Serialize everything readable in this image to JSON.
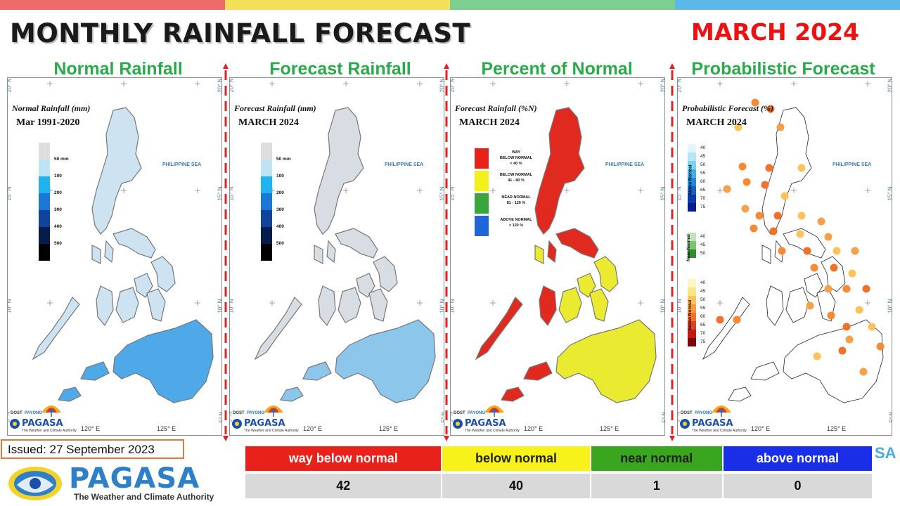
{
  "header": {
    "title": "MONTHLY RAINFALL FORECAST",
    "month": "MARCH 2024",
    "stripe_colors": [
      "#ef6b6b",
      "#f5e05a",
      "#7ccf8e",
      "#5bb8e8"
    ]
  },
  "panels": [
    {
      "title": "Normal Rainfall",
      "subtitle": "Normal Rainfall (mm)",
      "period": "Mar 1991-2020",
      "sea_label": "PHILIPPINE SEA",
      "map_fill": "#cde3f2",
      "legend": [
        {
          "label": "50 mm",
          "color": "#dedede"
        },
        {
          "label": "100",
          "color": "#bde3f5"
        },
        {
          "label": "200",
          "color": "#1fb4ef"
        },
        {
          "label": "300",
          "color": "#1b78d6"
        },
        {
          "label": "400",
          "color": "#10449c"
        },
        {
          "label": "500",
          "color": "#061c4f"
        },
        {
          "label": "",
          "color": "#000000"
        }
      ]
    },
    {
      "title": "Forecast Rainfall",
      "subtitle": "Forecast Rainfall (mm)",
      "period": "MARCH 2024",
      "sea_label": "PHILIPPINE SEA",
      "map_fill": "#d7dde2",
      "legend": [
        {
          "label": "50 mm",
          "color": "#dedede"
        },
        {
          "label": "100",
          "color": "#bde3f5"
        },
        {
          "label": "200",
          "color": "#1fb4ef"
        },
        {
          "label": "300",
          "color": "#1b78d6"
        },
        {
          "label": "400",
          "color": "#10449c"
        },
        {
          "label": "500",
          "color": "#061c4f"
        },
        {
          "label": "",
          "color": "#000000"
        }
      ]
    },
    {
      "title": "Percent of Normal",
      "subtitle": "Forecast Rainfall (%N)",
      "period": "MARCH 2024",
      "sea_label": "PHILIPPINE SEA",
      "map_fill": "#eaea30",
      "legend": [
        {
          "line1": "WAY",
          "line2": "BELOW NORMAL",
          "line3": "< 40 %",
          "color": "#e8221b"
        },
        {
          "line1": "BELOW NORMAL",
          "line2": "41 - 80 %",
          "line3": "",
          "color": "#f2ef1b"
        },
        {
          "line1": "NEAR NORMAL",
          "line2": "81 - 120 %",
          "line3": "",
          "color": "#3aa53a"
        },
        {
          "line1": "ABOVE NORMAL",
          "line2": "> 120 %",
          "line3": "",
          "color": "#1d67d8"
        }
      ]
    },
    {
      "title": "Probabilistic Forecast",
      "subtitle": "Probabilistic Forecast (%)",
      "period": "MARCH 2024",
      "sea_label": "PHILIPPINE SEA",
      "map_fill": "#ffffff",
      "legend_groups": [
        {
          "name": "Above Normal",
          "labels": [
            "40",
            "45",
            "50",
            "55",
            "60",
            "65",
            "70",
            "75"
          ],
          "colors": [
            "#e4f6fb",
            "#b6e6f5",
            "#7fd1ee",
            "#3fb0e6",
            "#1f88d8",
            "#1460c4",
            "#0c3aa8",
            "#061c86"
          ]
        },
        {
          "name": "Near Normal",
          "labels": [
            "40",
            "45",
            "50"
          ],
          "colors": [
            "#bfe3b8",
            "#7cc56c",
            "#2f8f2f"
          ]
        },
        {
          "name": "Below Normal",
          "labels": [
            "40",
            "45",
            "50",
            "55",
            "60",
            "65",
            "70",
            "75"
          ],
          "colors": [
            "#fff6c2",
            "#fde58a",
            "#fdc25a",
            "#f99a3a",
            "#f2702a",
            "#e2401f",
            "#c21a14",
            "#7a0a08"
          ]
        }
      ]
    }
  ],
  "axes": {
    "lat_labels": [
      "20° N",
      "15° N",
      "10° N",
      "5° N"
    ],
    "lon_labels": [
      "120° E",
      "125° E"
    ]
  },
  "mini_logo": {
    "dost": "DOST",
    "payong": "PAYONG",
    "pagasa": "PAGASA",
    "tagline": "The Weather and Climate Authority"
  },
  "issued": "Issued: 27 September 2023",
  "footer_logo": {
    "name": "PAGASA",
    "tagline": "The Weather and Climate Authority"
  },
  "summary": {
    "categories": [
      {
        "label": "way  below  normal",
        "color": "#e8221b",
        "text_color": "#ffffff"
      },
      {
        "label": "below normal",
        "color": "#f7f21a",
        "text_color": "#222222"
      },
      {
        "label": "near normal",
        "color": "#3aa51e",
        "text_color": "#222222"
      },
      {
        "label": "above normal",
        "color": "#1a2ee8",
        "text_color": "#ffffff"
      }
    ],
    "values": [
      "42",
      "40",
      "1",
      "0"
    ]
  },
  "side_fragment": "SA"
}
